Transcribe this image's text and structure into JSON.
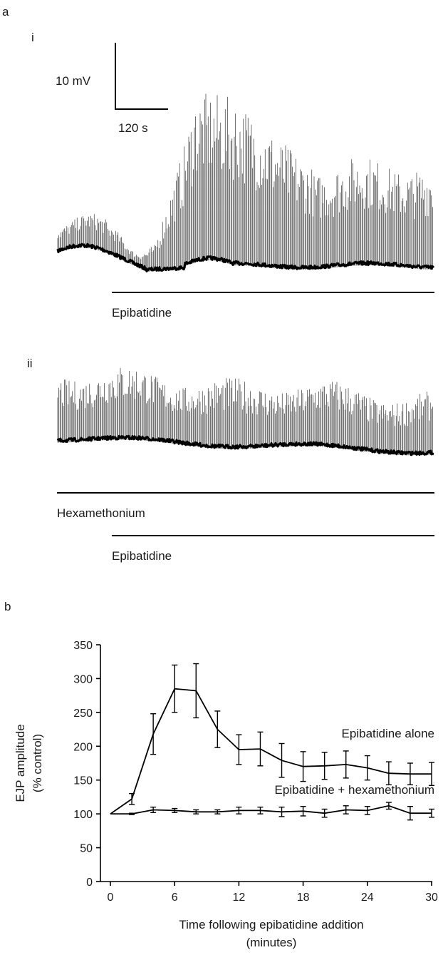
{
  "panel_a": {
    "label": "a",
    "trace_i": {
      "label": "i"
    },
    "trace_ii": {
      "label": "ii"
    },
    "scalebar": {
      "voltage_label": "10 mV",
      "time_label": "120 s"
    },
    "bars": {
      "i_epibatidine": "Epibatidine",
      "ii_hexamethonium": "Hexamethonium",
      "ii_epibatidine": "Epibatidine"
    }
  },
  "panel_b": {
    "label": "b"
  },
  "chart_data": {
    "type": "line",
    "title": "",
    "xlabel_line1": "Time following epibatidine addition",
    "xlabel_line2": "(minutes)",
    "ylabel_line1": "EJP amplitude",
    "ylabel_line2": "(% control)",
    "xlim": [
      0,
      30
    ],
    "ylim": [
      0,
      350
    ],
    "xticks": [
      0,
      6,
      12,
      18,
      24,
      30
    ],
    "yticks": [
      0,
      50,
      100,
      150,
      200,
      250,
      300,
      350
    ],
    "x": [
      0,
      2,
      4,
      6,
      8,
      10,
      12,
      14,
      16,
      18,
      20,
      22,
      24,
      26,
      28,
      30
    ],
    "series": [
      {
        "name": "Epibatidine alone",
        "values": [
          100,
          122,
          218,
          285,
          282,
          225,
          195,
          196,
          179,
          170,
          171,
          173,
          168,
          160,
          159,
          159
        ],
        "errors": [
          0,
          8,
          30,
          35,
          40,
          27,
          22,
          25,
          25,
          22,
          20,
          20,
          18,
          17,
          16,
          17
        ]
      },
      {
        "name": "Epibatidine + hexamethonium",
        "values": [
          100,
          100,
          106,
          105,
          103,
          103,
          105,
          105,
          103,
          104,
          101,
          106,
          105,
          112,
          101,
          101
        ],
        "errors": [
          0,
          1,
          4,
          3,
          3,
          3,
          5,
          5,
          7,
          7,
          6,
          6,
          6,
          5,
          10,
          6
        ]
      }
    ]
  }
}
